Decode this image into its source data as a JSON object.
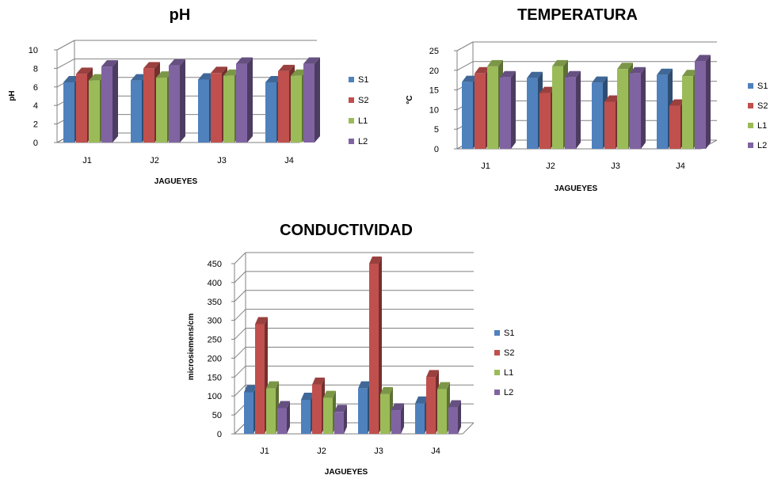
{
  "chart_data": [
    {
      "type": "bar",
      "title": "pH",
      "xlabel": "JAGUEYES",
      "ylabel": "pH",
      "ylim": [
        0,
        10
      ],
      "yticks": [
        0,
        2,
        4,
        6,
        8,
        10
      ],
      "categories": [
        "J1",
        "J2",
        "J3",
        "J4"
      ],
      "series": [
        {
          "name": "S1",
          "color": "#4F81BD",
          "values": [
            6.5,
            6.7,
            6.8,
            6.5
          ]
        },
        {
          "name": "S2",
          "color": "#C0504D",
          "values": [
            7.4,
            8.0,
            7.5,
            7.7
          ]
        },
        {
          "name": "L1",
          "color": "#9BBB59",
          "values": [
            6.7,
            7.0,
            7.2,
            7.2
          ]
        },
        {
          "name": "L2",
          "color": "#8064A2",
          "values": [
            8.2,
            8.3,
            8.5,
            8.5
          ]
        }
      ],
      "grid": true,
      "legend": "right"
    },
    {
      "type": "bar",
      "title": "TEMPERATURA",
      "xlabel": "JAGUEYES",
      "ylabel": "°C",
      "ylim": [
        0,
        25
      ],
      "yticks": [
        0,
        5,
        10,
        15,
        20,
        25
      ],
      "categories": [
        "J1",
        "J2",
        "J3",
        "J4"
      ],
      "series": [
        {
          "name": "S1",
          "color": "#4F81BD",
          "values": [
            17,
            18,
            16.8,
            18.8
          ]
        },
        {
          "name": "S2",
          "color": "#C0504D",
          "values": [
            19.2,
            14.2,
            12,
            11
          ]
        },
        {
          "name": "L1",
          "color": "#9BBB59",
          "values": [
            21,
            21,
            20.3,
            18.5
          ]
        },
        {
          "name": "L2",
          "color": "#8064A2",
          "values": [
            18.2,
            18.2,
            19.2,
            22.3
          ]
        }
      ],
      "grid": true,
      "legend": "right"
    },
    {
      "type": "bar",
      "title": "CONDUCTIVIDAD",
      "xlabel": "JAGUEYES",
      "ylabel": "microsiemens/cm",
      "ylim": [
        0,
        450
      ],
      "yticks": [
        0,
        50,
        100,
        150,
        200,
        250,
        300,
        350,
        400,
        450
      ],
      "categories": [
        "J1",
        "J2",
        "J3",
        "J4"
      ],
      "series": [
        {
          "name": "S1",
          "color": "#4F81BD",
          "values": [
            110,
            90,
            120,
            80
          ]
        },
        {
          "name": "S2",
          "color": "#C0504D",
          "values": [
            290,
            130,
            450,
            150
          ]
        },
        {
          "name": "L1",
          "color": "#9BBB59",
          "values": [
            120,
            95,
            105,
            118
          ]
        },
        {
          "name": "L2",
          "color": "#8064A2",
          "values": [
            68,
            58,
            62,
            70
          ]
        }
      ],
      "grid": true,
      "legend": "right"
    }
  ]
}
